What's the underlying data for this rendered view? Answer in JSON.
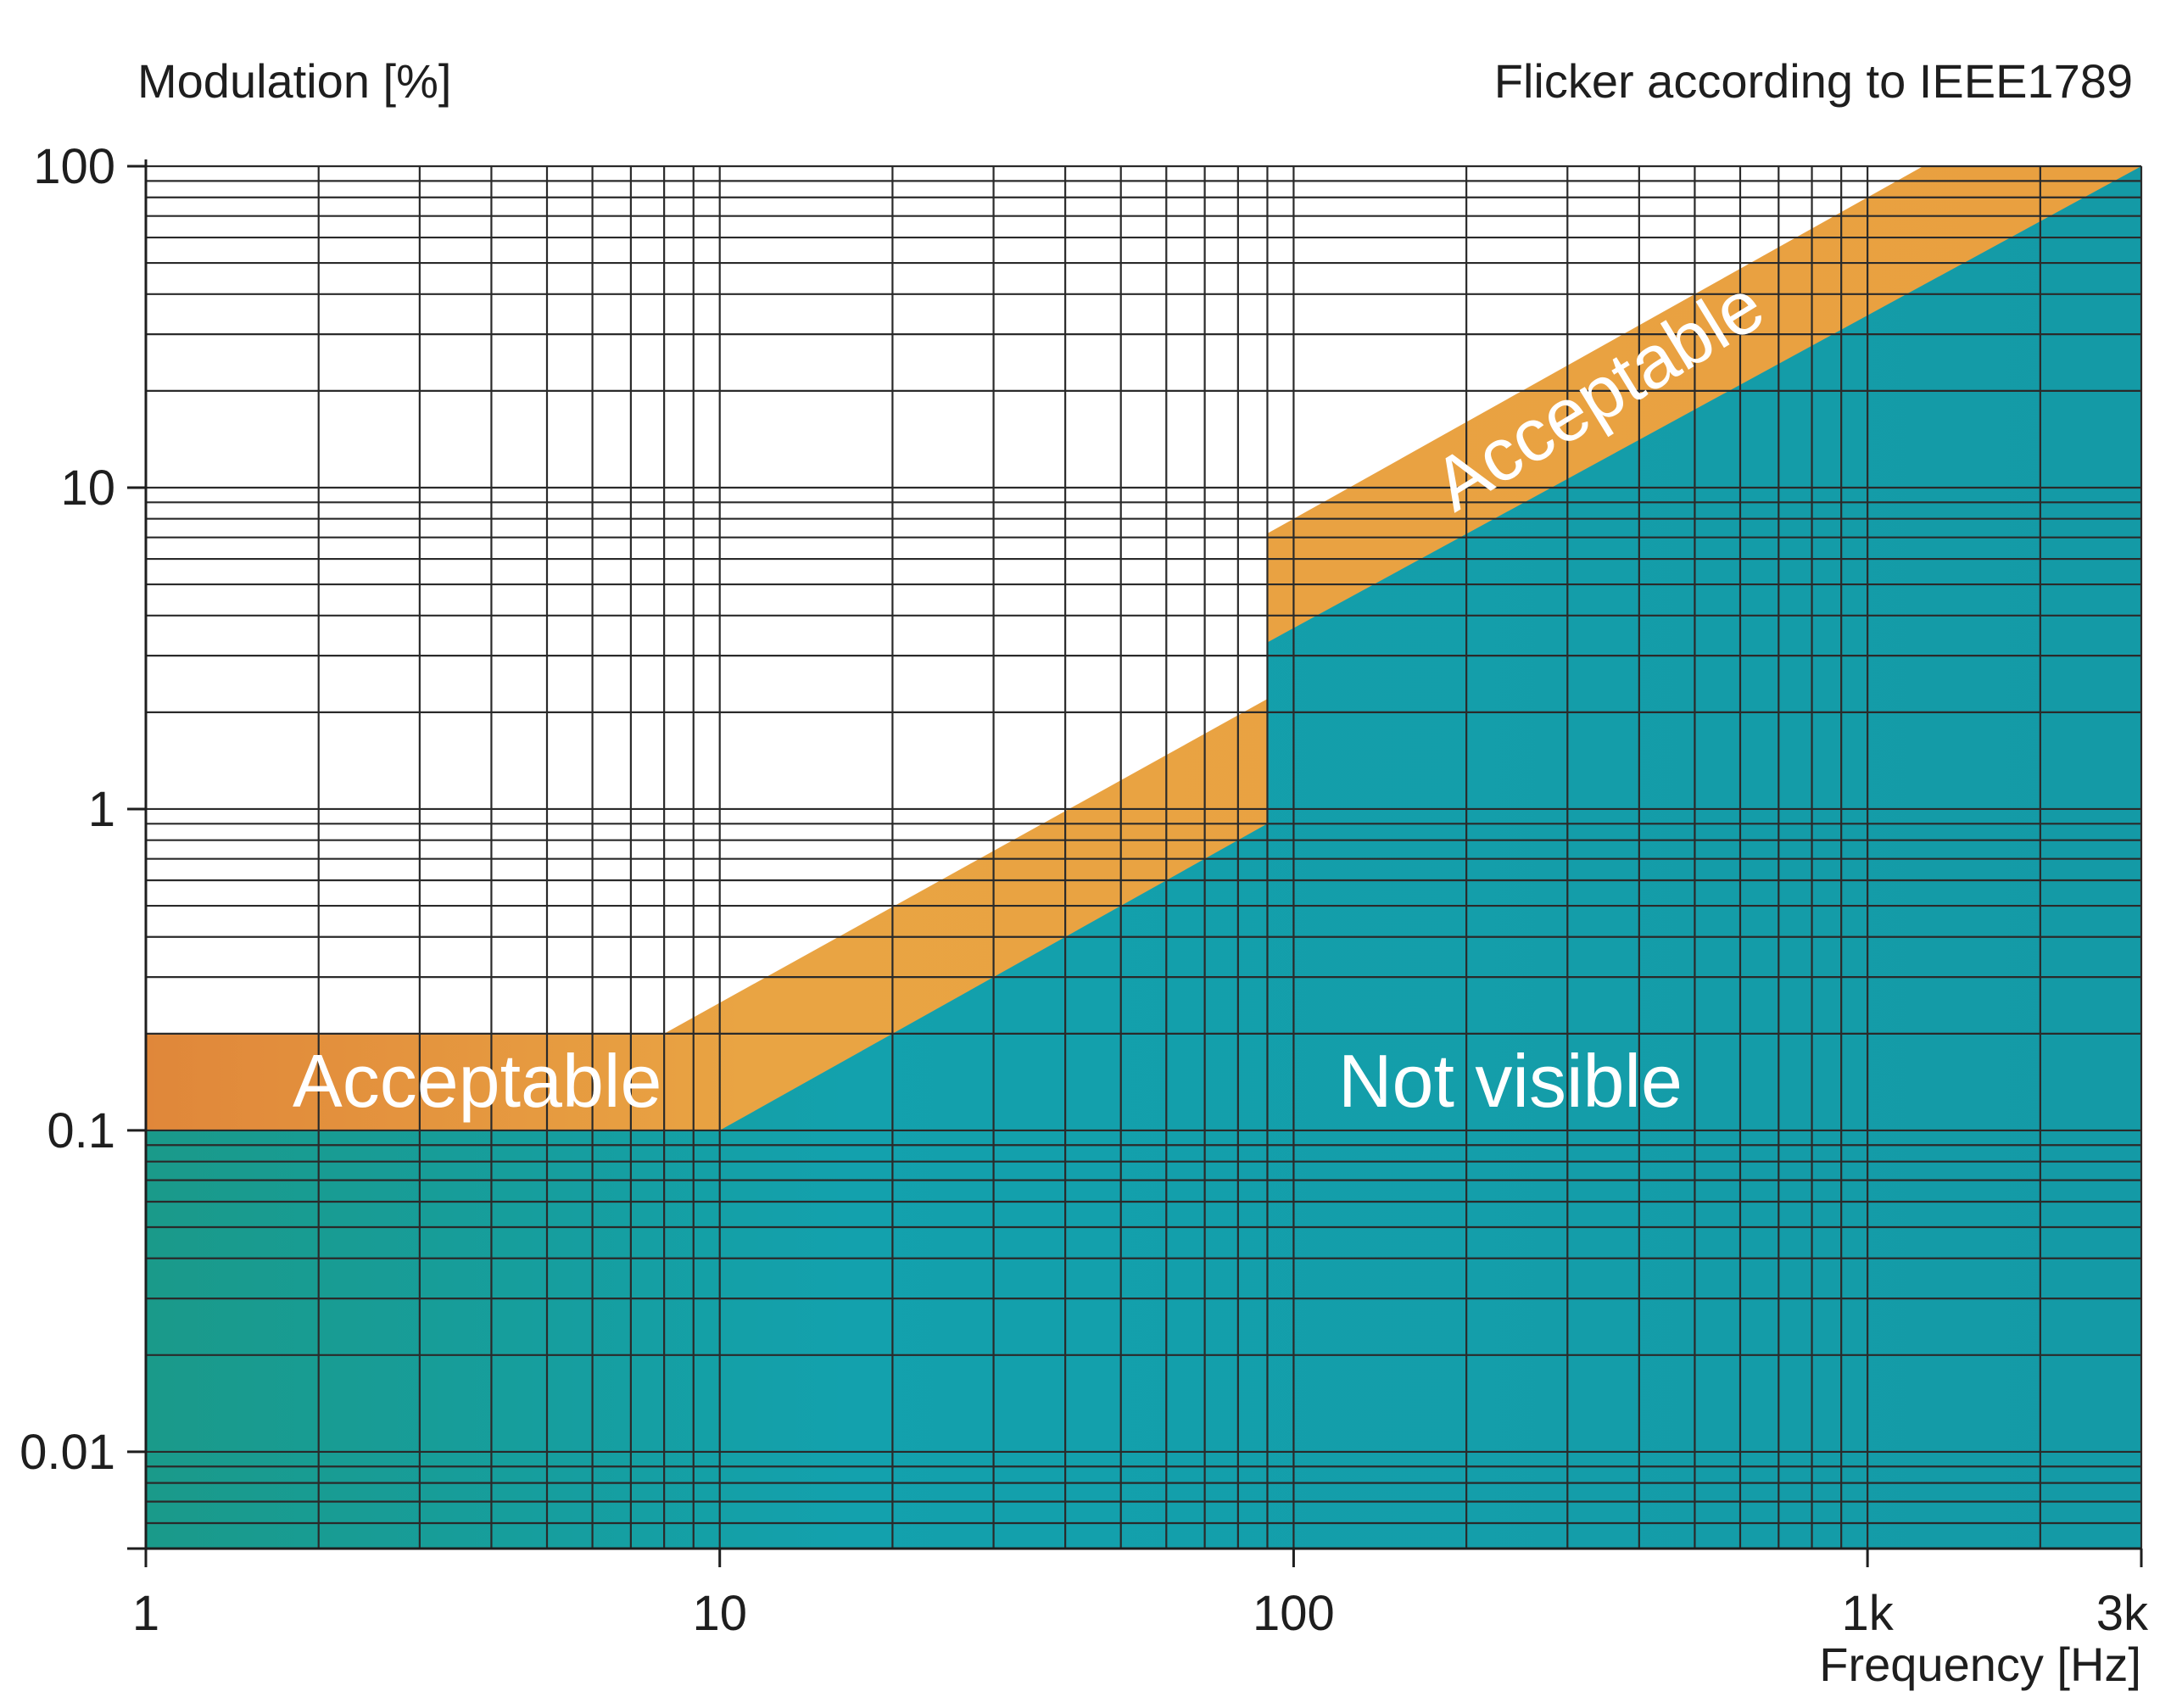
{
  "chart_data": {
    "type": "area",
    "title": "Flicker according to IEEE1789",
    "ylabel": "Modulation [%]",
    "xlabel": "Frequency [Hz]",
    "x_scale": "log",
    "y_scale": "log",
    "xlim": [
      1,
      3000
    ],
    "ylim": [
      0.005,
      100
    ],
    "grid": true,
    "x_ticks": [
      {
        "value": 1,
        "label": "1"
      },
      {
        "value": 10,
        "label": "10"
      },
      {
        "value": 100,
        "label": "100"
      },
      {
        "value": 1000,
        "label": "1k"
      },
      {
        "value": 3000,
        "label": "3k"
      }
    ],
    "y_ticks": [
      {
        "value": 100,
        "label": "100"
      },
      {
        "value": 10,
        "label": "10"
      },
      {
        "value": 1,
        "label": "1"
      },
      {
        "value": 0.1,
        "label": "0.1"
      },
      {
        "value": 0.01,
        "label": "0.01"
      }
    ],
    "regions": [
      {
        "name": "Not visible",
        "color": "#14a0b0",
        "upper_boundary": [
          [
            1,
            0.1
          ],
          [
            10,
            0.1
          ],
          [
            90,
            0.9
          ],
          [
            90,
            3.3
          ],
          [
            3000,
            100
          ]
        ],
        "label_at": [
          200,
          0.1
        ]
      },
      {
        "name": "Acceptable",
        "color": "#e8a440",
        "upper_boundary": [
          [
            1,
            0.2
          ],
          [
            8,
            0.2
          ],
          [
            90,
            2.2
          ],
          [
            90,
            7.2
          ],
          [
            1250,
            100
          ],
          [
            3000,
            100
          ]
        ],
        "labels_at": [
          [
            2,
            0.1
          ],
          [
            350,
            20
          ]
        ]
      }
    ],
    "region_labels": {
      "not_visible": "Not visible",
      "acceptable_low": "Acceptable",
      "acceptable_high": "Acceptable"
    }
  }
}
